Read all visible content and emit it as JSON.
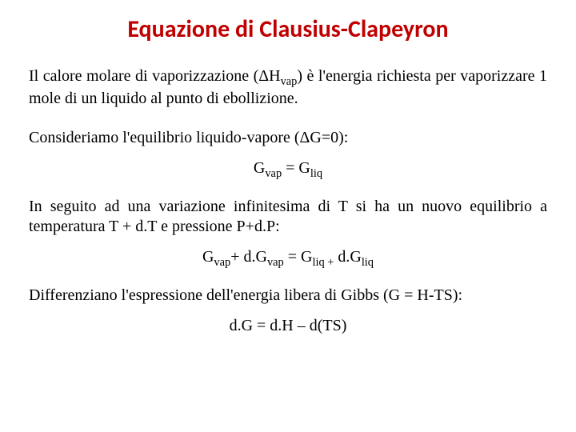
{
  "title": {
    "text": "Equazione di Clausius-Clapeyron",
    "color": "#c00000",
    "fontsize": 30
  },
  "body_fontsize": 20,
  "body_color": "#000000",
  "para1_a": "Il calore molare di vaporizzazione (ΔH",
  "para1_sub": "vap",
  "para1_b": ") è l'energia richiesta per vaporizzare 1 mole di un liquido al punto di ebollizione.",
  "para2": "Consideriamo l'equilibrio liquido-vapore (ΔG=0):",
  "eq1_a": "G",
  "eq1_sub1": "vap",
  "eq1_b": " = G",
  "eq1_sub2": "liq",
  "para3": "In seguito ad una variazione infinitesima di T  si ha un nuovo equilibrio a temperatura T + d.T e pressione P+d.P:",
  "eq2_a": "G",
  "eq2_sub1": "vap",
  "eq2_b": "+ d.G",
  "eq2_sub2": "vap",
  "eq2_c": " = G",
  "eq2_sub3": "liq +",
  "eq2_d": " d.G",
  "eq2_sub4": "liq",
  "para4": "Differenziano l'espressione dell'energia libera di Gibbs (G = H-TS):",
  "eq3": "d.G = d.H – d(TS)"
}
